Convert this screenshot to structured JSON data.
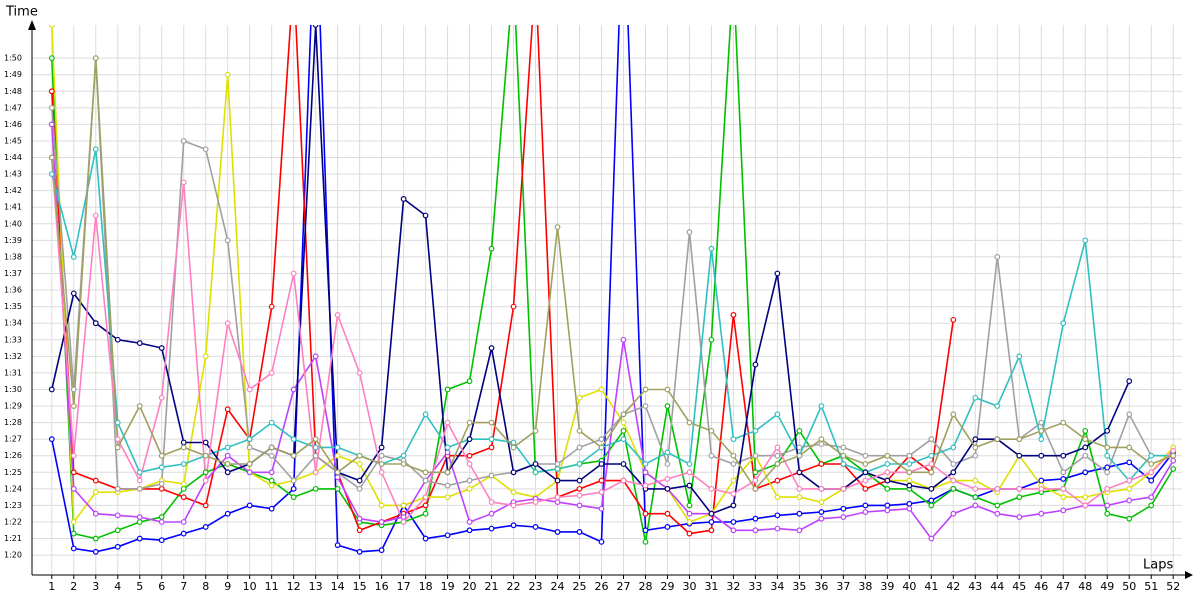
{
  "chart_data": {
    "type": "line",
    "x_label": "Laps",
    "y_label": "Time",
    "x": [
      1,
      2,
      3,
      4,
      5,
      6,
      7,
      8,
      9,
      10,
      11,
      12,
      13,
      14,
      15,
      16,
      17,
      18,
      19,
      20,
      21,
      22,
      23,
      24,
      25,
      26,
      27,
      28,
      29,
      30,
      31,
      32,
      33,
      34,
      35,
      36,
      37,
      38,
      39,
      40,
      41,
      42,
      43,
      44,
      45,
      46,
      47,
      48,
      49,
      50,
      51,
      52
    ],
    "xlim": [
      0.1,
      52.4
    ],
    "xticks": [
      1,
      2,
      3,
      4,
      5,
      6,
      7,
      8,
      9,
      10,
      11,
      12,
      13,
      14,
      15,
      16,
      17,
      18,
      19,
      20,
      21,
      22,
      23,
      24,
      25,
      26,
      27,
      28,
      29,
      30,
      31,
      32,
      33,
      34,
      35,
      36,
      37,
      38,
      39,
      40,
      41,
      42,
      43,
      44,
      45,
      46,
      47,
      48,
      49,
      50,
      51,
      52
    ],
    "ylim": [
      78.8,
      112
    ],
    "yticks": [
      {
        "value": 80,
        "label": "1:20"
      },
      {
        "value": 81,
        "label": "1:21"
      },
      {
        "value": 82,
        "label": "1:22"
      },
      {
        "value": 83,
        "label": "1:23"
      },
      {
        "value": 84,
        "label": "1:24"
      },
      {
        "value": 85,
        "label": "1:25"
      },
      {
        "value": 86,
        "label": "1:26"
      },
      {
        "value": 87,
        "label": "1:27"
      },
      {
        "value": 88,
        "label": "1:28"
      },
      {
        "value": 89,
        "label": "1:29"
      },
      {
        "value": 90,
        "label": "1:30"
      },
      {
        "value": 91,
        "label": "1:31"
      },
      {
        "value": 92,
        "label": "1:32"
      },
      {
        "value": 93,
        "label": "1:33"
      },
      {
        "value": 94,
        "label": "1:34"
      },
      {
        "value": 95,
        "label": "1:35"
      },
      {
        "value": 96,
        "label": "1:36"
      },
      {
        "value": 97,
        "label": "1:37"
      },
      {
        "value": 98,
        "label": "1:38"
      },
      {
        "value": 99,
        "label": "1:39"
      },
      {
        "value": 100,
        "label": "1:40"
      },
      {
        "value": 101,
        "label": "1:41"
      },
      {
        "value": 102,
        "label": "1:42"
      },
      {
        "value": 103,
        "label": "1:43"
      },
      {
        "value": 104,
        "label": "1:44"
      },
      {
        "value": 105,
        "label": "1:45"
      },
      {
        "value": 106,
        "label": "1:46"
      },
      {
        "value": 107,
        "label": "1:47"
      },
      {
        "value": 108,
        "label": "1:48"
      },
      {
        "value": 109,
        "label": "1:49"
      },
      {
        "value": 110,
        "label": "1:50"
      }
    ],
    "grid": true,
    "series": [
      {
        "color": "#0000ff",
        "values": [
          87,
          80.4,
          80.2,
          80.5,
          81,
          80.9,
          81.3,
          81.7,
          82.5,
          83,
          82.8,
          84,
          120,
          80.6,
          80.2,
          80.3,
          83,
          81,
          81.2,
          81.5,
          81.6,
          81.8,
          81.7,
          81.4,
          81.4,
          80.8,
          120,
          81.5,
          81.7,
          81.9,
          82,
          82,
          82.2,
          82.4,
          82.5,
          82.6,
          82.8,
          83,
          83,
          83.1,
          83.3,
          84,
          83.5,
          84,
          84,
          84.5,
          84.6,
          85,
          85.3,
          85.6,
          84.5,
          86.2
        ]
      },
      {
        "color": "#00c000",
        "values": [
          110,
          81.3,
          81,
          81.5,
          82,
          82.3,
          84,
          85,
          85.5,
          85,
          84.5,
          83.5,
          84,
          84,
          82,
          81.8,
          82,
          82.5,
          90,
          90.5,
          98.5,
          115,
          85,
          85.2,
          85.5,
          85.7,
          87.5,
          80.8,
          89,
          83,
          93,
          115,
          85,
          85.5,
          87.5,
          85.5,
          86,
          85,
          84,
          84,
          83,
          84,
          83.5,
          83,
          83.5,
          83.8,
          84,
          87.5,
          82.5,
          82.2,
          83,
          85.2
        ]
      },
      {
        "color": "#ff0000",
        "values": [
          108,
          85,
          84.5,
          84,
          84,
          84,
          83.5,
          83,
          88.8,
          87,
          95,
          115,
          86,
          85,
          81.5,
          82,
          82.5,
          83,
          86,
          86,
          86.5,
          95,
          115,
          83.5,
          84,
          84.5,
          84.5,
          82.5,
          82.5,
          81.3,
          81.5,
          94.5,
          84,
          84.5,
          85,
          85.5,
          85.5,
          84,
          84.5,
          86,
          85,
          94.2,
          null,
          null,
          null,
          null,
          null,
          null,
          null,
          null,
          null,
          null
        ]
      },
      {
        "color": "#e0e000",
        "values": [
          112,
          82,
          83.8,
          83.8,
          84,
          84.5,
          84.3,
          92,
          109,
          85,
          84.2,
          84.5,
          85,
          86,
          85.5,
          83,
          83,
          83.5,
          83.5,
          84,
          84.8,
          83.8,
          83.5,
          84.5,
          89.5,
          90,
          88,
          85,
          84,
          82,
          82.5,
          84.5,
          86,
          83.5,
          83.5,
          83.2,
          84,
          85,
          84.5,
          84.5,
          84,
          84.5,
          84.5,
          83.8,
          86,
          84.2,
          83.5,
          83.5,
          83.8,
          84,
          85,
          86.5
        ]
      },
      {
        "color": "#c040ff",
        "values": [
          106,
          84,
          82.5,
          82.4,
          82.3,
          82,
          82,
          84.5,
          86,
          85,
          85,
          90,
          92,
          84.7,
          82.2,
          82,
          82.3,
          84.5,
          86.2,
          82,
          82.5,
          83.2,
          83.4,
          83.2,
          83,
          82.8,
          93,
          85,
          84,
          82.5,
          82.5,
          81.5,
          81.5,
          81.6,
          81.5,
          82.2,
          82.3,
          82.6,
          82.7,
          82.8,
          81,
          82.5,
          83,
          82.5,
          82.3,
          82.5,
          82.7,
          83,
          83,
          83.3,
          83.5,
          85.7
        ]
      },
      {
        "color": "#a0a0a0",
        "values": [
          107,
          90,
          110,
          84,
          84,
          84.3,
          105,
          104.5,
          99,
          86.5,
          86,
          84.5,
          86,
          85,
          84,
          86,
          85.7,
          84.5,
          84.2,
          84.5,
          84.8,
          85,
          85.5,
          85.5,
          86.5,
          87,
          88.5,
          89,
          85.5,
          99.5,
          86,
          85.5,
          86,
          86,
          86.5,
          86.7,
          86.5,
          86,
          86,
          86,
          87,
          85.5,
          86,
          98,
          87,
          88,
          85,
          86,
          85,
          88.5,
          86,
          86
        ]
      },
      {
        "color": "#30c0c0",
        "values": [
          103,
          98,
          104.5,
          88,
          85,
          85.3,
          85.5,
          86,
          86.5,
          87,
          88,
          87,
          86.5,
          86.5,
          86,
          85.5,
          86,
          88.5,
          86.5,
          87,
          87,
          86.8,
          85,
          85.2,
          85.5,
          86.5,
          87,
          85.5,
          86.2,
          85.5,
          98.5,
          87,
          87.5,
          88.5,
          86,
          89,
          85.5,
          85,
          85.5,
          85.5,
          86,
          86.5,
          89.5,
          89,
          92,
          87,
          94,
          99,
          86,
          84.5,
          86,
          86
        ]
      },
      {
        "color": "#000080",
        "values": [
          90,
          95.8,
          94,
          93,
          92.8,
          92.5,
          86.8,
          86.8,
          85,
          85.5,
          86.5,
          86,
          112,
          85,
          84.5,
          86.5,
          101.5,
          100.5,
          85,
          87,
          92.5,
          85,
          85.5,
          84.5,
          84.5,
          85.5,
          85.5,
          84,
          84,
          84.2,
          82.5,
          83,
          91.5,
          97,
          85,
          84,
          84,
          85,
          84.5,
          84.2,
          84,
          85,
          87,
          87,
          86,
          86,
          86,
          86.5,
          87.5,
          90.5,
          null,
          null
        ]
      },
      {
        "color": "#ff80c0",
        "values": [
          104,
          86,
          100.5,
          87,
          84.5,
          89.5,
          102.5,
          84.5,
          94,
          90,
          91,
          97,
          85,
          94.5,
          91,
          85,
          82,
          83.5,
          88,
          85.5,
          83.2,
          83,
          83.2,
          83.5,
          83.6,
          83.8,
          84.5,
          84.2,
          84.6,
          85,
          84,
          83.7,
          84.5,
          86.5,
          84,
          84,
          84,
          84.5,
          85,
          85,
          85.5,
          84.5,
          84,
          84,
          84,
          84,
          84,
          83,
          84,
          84.5,
          85,
          86.3
        ]
      },
      {
        "color": "#a0a060",
        "values": [
          104,
          89,
          110,
          86.5,
          89,
          86,
          86.5,
          86,
          85.5,
          85.5,
          86.5,
          86,
          87,
          85,
          86,
          85.5,
          85.5,
          85,
          85,
          88,
          88,
          86.5,
          87.5,
          99.8,
          87.5,
          86.5,
          88.5,
          90,
          90,
          88,
          87.5,
          86,
          84,
          85.5,
          86,
          87,
          86,
          85.5,
          86,
          85,
          85,
          88.5,
          86.5,
          87,
          87,
          87.5,
          88,
          87,
          86.5,
          86.5,
          85.5,
          86
        ]
      }
    ]
  }
}
